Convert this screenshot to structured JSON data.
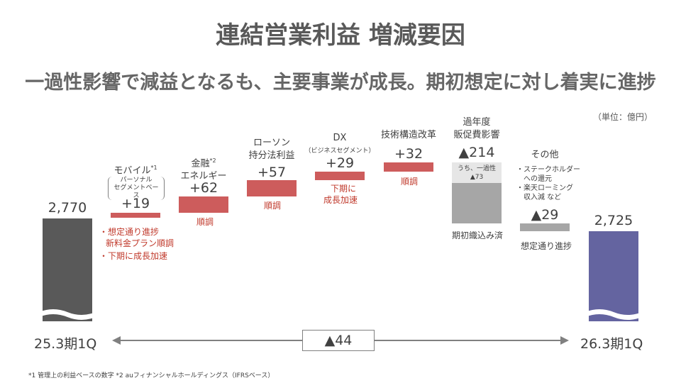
{
  "title": "連結営業利益 増減要因",
  "subtitle": "一過性影響で減益となるも、主要事業が成長。期初想定に対し着実に進捗",
  "unit": "（単位：億円）",
  "colors": {
    "start_bar": "#595959",
    "end_bar": "#6464a0",
    "positive": "#cd5c5c",
    "negative": "#a6a6a6",
    "one_time": "#e6e6e6"
  },
  "chart_data": {
    "type": "bar",
    "subtype": "waterfall",
    "categories": [
      "25.3期1Q",
      "モバイル",
      "金融 エネルギー",
      "ローソン 持分法利益",
      "DX",
      "技術構造改革",
      "過年度 販促費影響",
      "その他",
      "26.3期1Q"
    ],
    "values": [
      2770,
      19,
      62,
      57,
      29,
      32,
      -214,
      -29,
      2725
    ],
    "value_labels": [
      "2,770",
      "+19",
      "+62",
      "+57",
      "+29",
      "+32",
      "▲214",
      "▲29",
      "2,725"
    ],
    "one_time_sub_value": -73,
    "one_time_sub_label": "▲73",
    "total_change_label": "▲44"
  },
  "labels": {
    "start_value": "2,770",
    "end_value": "2,725",
    "start_period": "25.3期1Q",
    "end_period": "26.3期1Q",
    "diff": "▲44",
    "mobile_name": "モバイル",
    "mobile_mark": "*1",
    "mobile_sub1": "パーソナル",
    "mobile_sub2": "セグメントベース",
    "mobile_value": "+19",
    "fin_name1": "金融",
    "fin_mark": "*2",
    "fin_name2": "エネルギー",
    "fin_value": "+62",
    "lawson_name1": "ローソン",
    "lawson_name2": "持分法利益",
    "lawson_value": "+57",
    "dx_name": "DX",
    "dx_sub": "（ビジネスセグメント）",
    "dx_value": "+29",
    "tech_name": "技術構造改革",
    "tech_value": "+32",
    "promo_name1": "過年度",
    "promo_name2": "販促費影響",
    "promo_value": "▲214",
    "onetime_label": "うち、一過性",
    "onetime_value": "▲73",
    "other_name": "その他",
    "other_value": "▲29"
  },
  "notes": {
    "mobile_1": "・想定通り進捗",
    "mobile_2": "新料金プラン順調",
    "mobile_3": "・下期に成長加速",
    "fin": "順調",
    "lawson": "順調",
    "dx_1": "下期に",
    "dx_2": "成長加速",
    "tech": "順調",
    "promo": "期初織込み済",
    "other_1": "・ステークホルダー",
    "other_2": "への還元",
    "other_3": "・楽天ローミング",
    "other_4": "収入減 など",
    "other_bottom": "想定通り進捗"
  },
  "footnote": "*1 管理上の利益ベースの数字 *2 auフィナンシャルホールディングス（IFRSベース）"
}
